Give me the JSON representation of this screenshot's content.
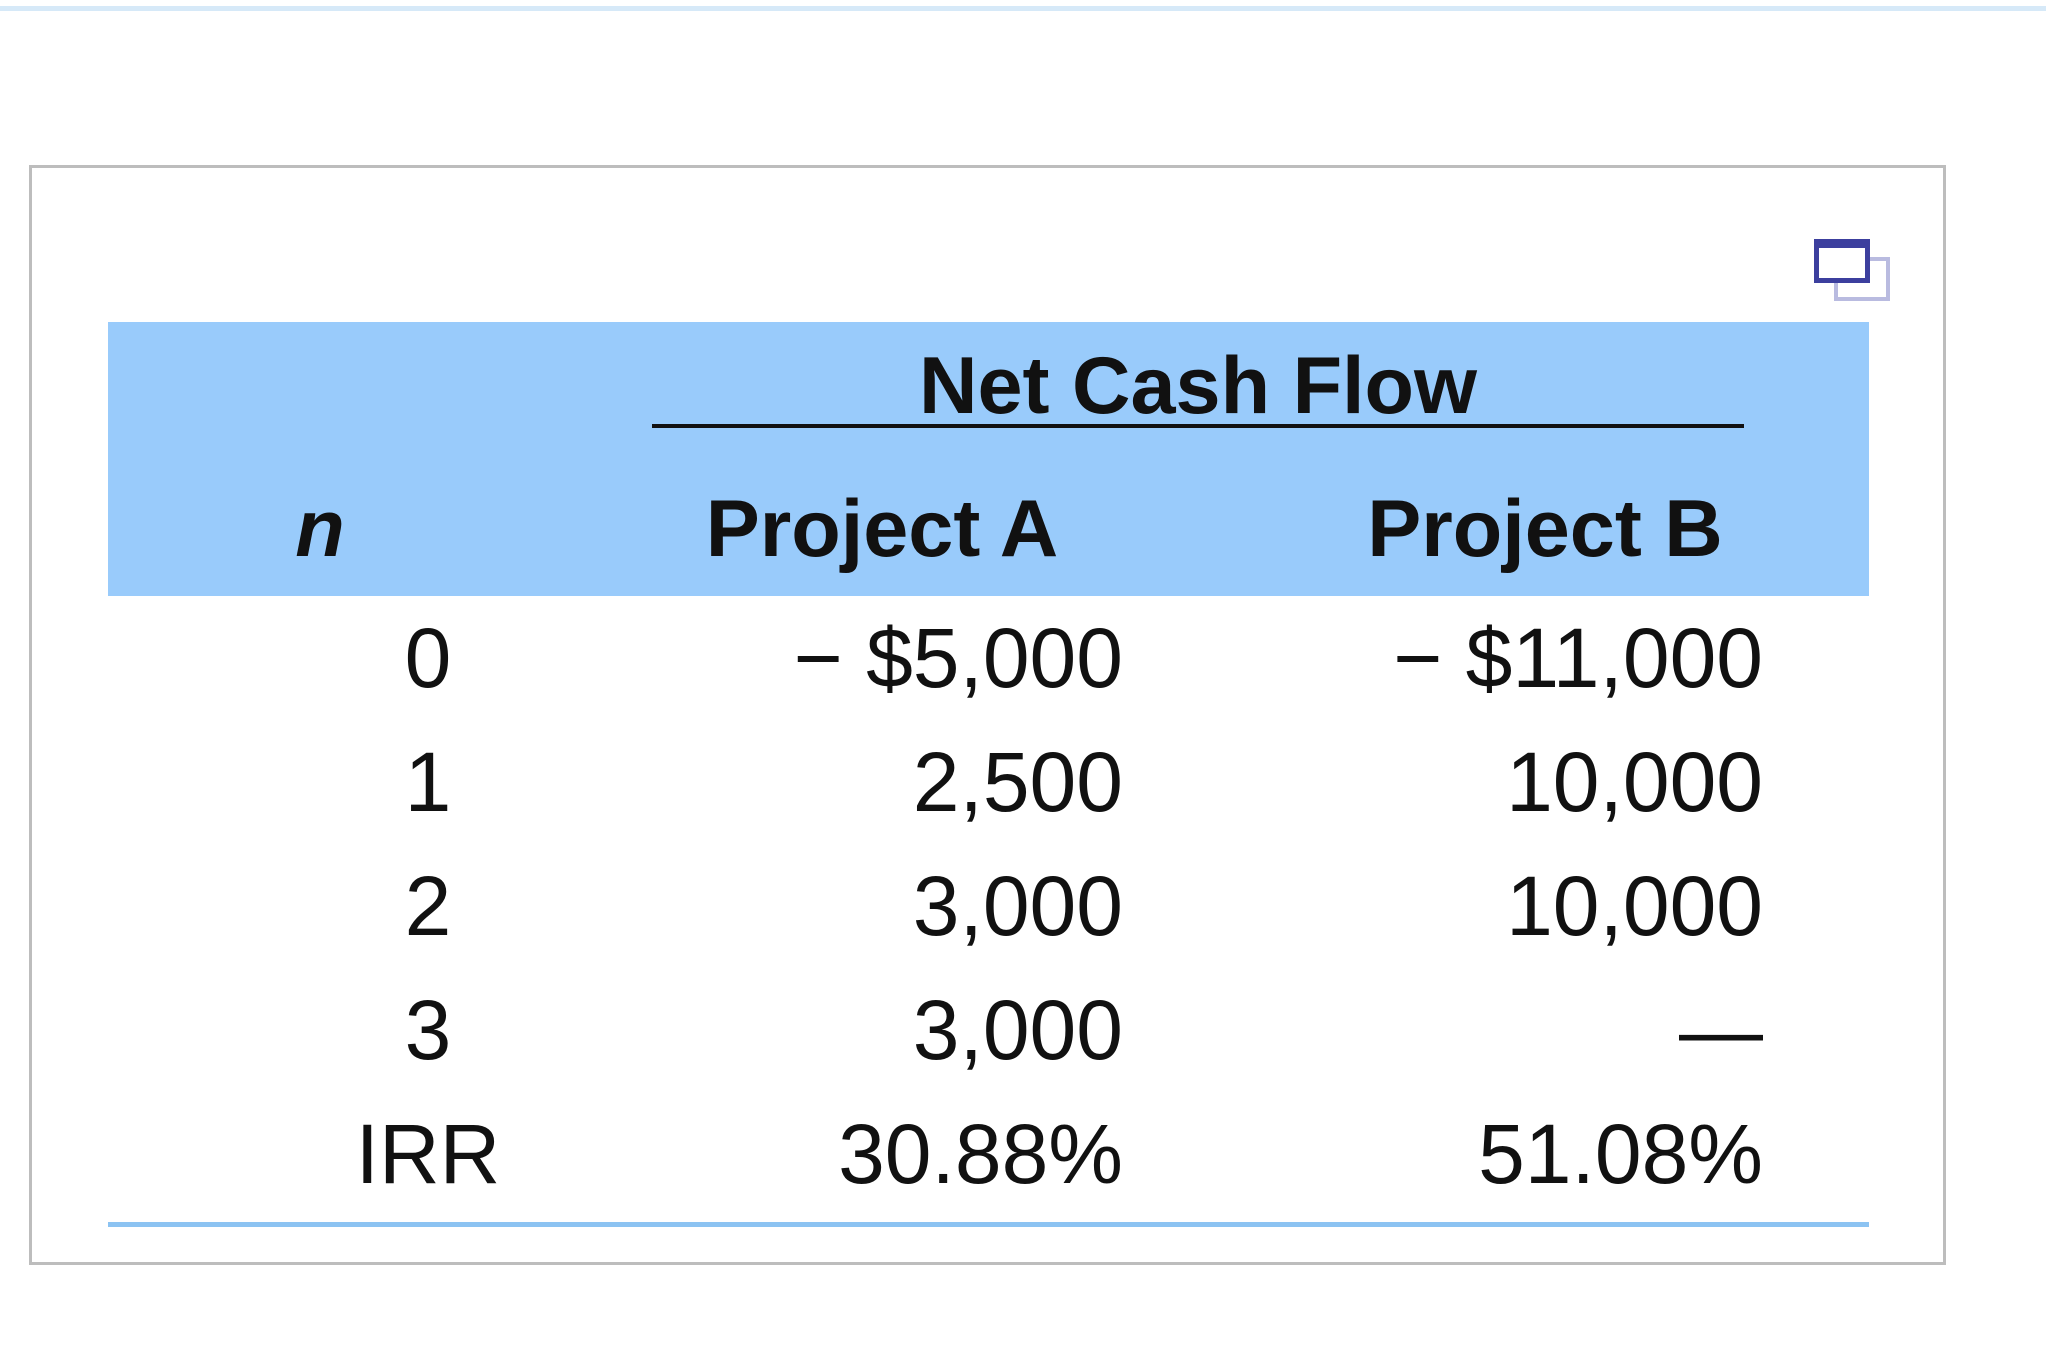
{
  "table": {
    "group_header": "Net Cash Flow",
    "columns": [
      "n",
      "Project A",
      "Project B"
    ],
    "rows": [
      {
        "n": "0",
        "a": "− $5,000",
        "b": "− $11,000"
      },
      {
        "n": "1",
        "a": "2,500",
        "b": "10,000"
      },
      {
        "n": "2",
        "a": "3,000",
        "b": "10,000"
      },
      {
        "n": "3",
        "a": "3,000",
        "b": "—"
      },
      {
        "n": "IRR",
        "a": "30.88%",
        "b": "51.08%"
      }
    ]
  },
  "icons": {
    "popout": "popout-window-icon"
  },
  "colors": {
    "header_bg": "#99cbfb",
    "bottom_rule": "#8cc3f2",
    "panel_border": "#bdbdbd",
    "icon": "#3c3f9e"
  }
}
